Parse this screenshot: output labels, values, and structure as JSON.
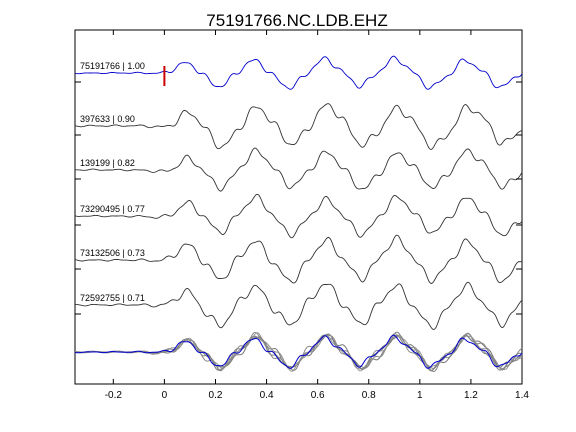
{
  "chart_data": {
    "type": "line",
    "title": "75191766.NC.LDB.EHZ",
    "xlabel": "",
    "ylabel": "",
    "xlim": [
      -0.35,
      1.4
    ],
    "xticks": [
      -0.2,
      0,
      0.2,
      0.4,
      0.6,
      0.8,
      1,
      1.2,
      1.4
    ],
    "xtick_labels": [
      "-0.2",
      "0",
      "0.2",
      "0.4",
      "0.6",
      "0.8",
      "1",
      "1.2",
      "1.4"
    ],
    "grid": false,
    "pick_marker": {
      "x": 0,
      "color": "#cc0000"
    },
    "reference_trace": {
      "label": "75191766 | 1.00",
      "color": "#0000cc"
    },
    "traces": [
      {
        "label": "75191766 | 1.00",
        "color": "#0000cc"
      },
      {
        "label": "397633 | 0.90",
        "color": "#333333"
      },
      {
        "label": "139199 | 0.82",
        "color": "#333333"
      },
      {
        "label": "73290495 | 0.77",
        "color": "#333333"
      },
      {
        "label": "73132506 | 0.73",
        "color": "#333333"
      },
      {
        "label": "72592755 | 0.71",
        "color": "#333333"
      }
    ],
    "stack": {
      "colors": [
        "#777777",
        "#888888",
        "#999999",
        "#808080",
        "#8a8a8a"
      ],
      "reference_color": "#0000cc"
    }
  }
}
